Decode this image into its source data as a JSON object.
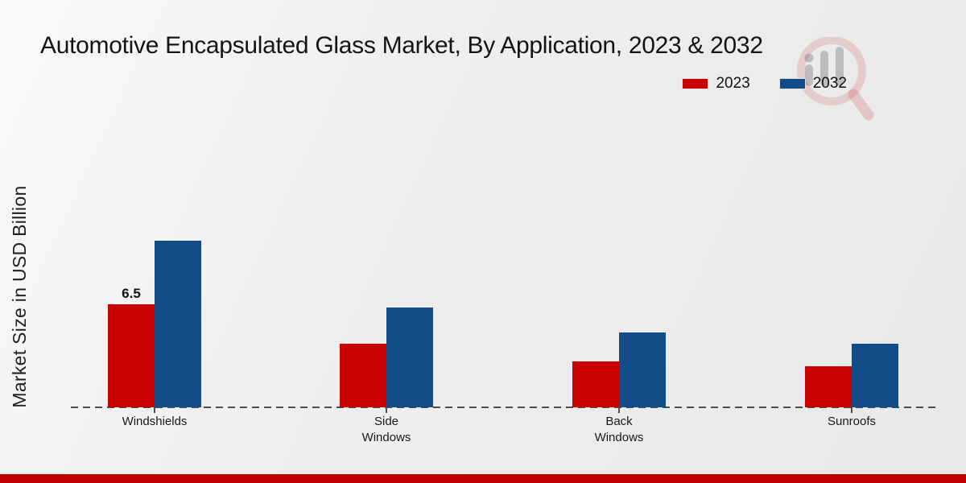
{
  "header": {
    "title": "Automotive Encapsulated Glass Market, By Application, 2023 & 2032"
  },
  "legend": {
    "items": [
      {
        "label": "2023",
        "color": "#c80200"
      },
      {
        "label": "2032",
        "color": "#134d89"
      }
    ]
  },
  "chart_data": {
    "type": "bar",
    "title": "Automotive Encapsulated Glass Market, By Application, 2023 & 2032",
    "xlabel": "",
    "ylabel": "Market Size in USD Billion",
    "categories": [
      "Windshields",
      "Side Windows",
      "Back Windows",
      "Sunroofs"
    ],
    "series": [
      {
        "name": "2023",
        "color": "#c80200",
        "values": [
          6.5,
          4.0,
          2.9,
          2.6
        ],
        "data_labels": [
          "6.5",
          "",
          "",
          ""
        ]
      },
      {
        "name": "2032",
        "color": "#134d89",
        "values": [
          10.5,
          6.3,
          4.7,
          4.0
        ],
        "data_labels": [
          "",
          "",
          "",
          ""
        ]
      }
    ],
    "ylim": [
      0,
      11
    ],
    "grid": false,
    "y_axis_ticks_visible": false,
    "legend_position": "top-right",
    "x_axis_style": "dashed"
  },
  "watermark": {
    "name": "magnifier-bar-chart-logo"
  },
  "footer": {
    "accent_color": "#c00000"
  }
}
